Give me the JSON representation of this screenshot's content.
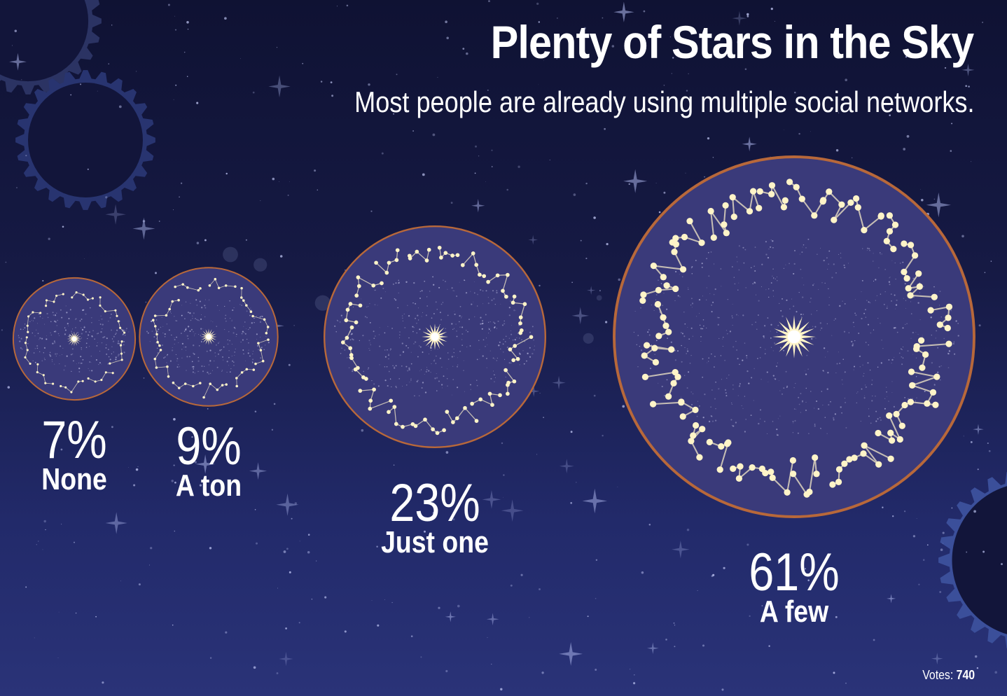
{
  "title": "Plenty of Stars in the Sky",
  "subtitle": "Most people are already using multiple social networks.",
  "votes": {
    "label": "Votes:",
    "value": "740"
  },
  "colors": {
    "ring": "#b8683a",
    "disc": "#3a3a7a",
    "star": "#fff4c8"
  },
  "chart_data": {
    "type": "bubble",
    "title": "Plenty of Stars in the Sky",
    "subtitle": "Most people are already using multiple social networks.",
    "categories": [
      "None",
      "A ton",
      "Just one",
      "A few"
    ],
    "values": [
      7,
      9,
      23,
      61
    ],
    "value_labels": [
      "7%",
      "9%",
      "23%",
      "61%"
    ],
    "unit": "%",
    "total_votes": 740
  }
}
